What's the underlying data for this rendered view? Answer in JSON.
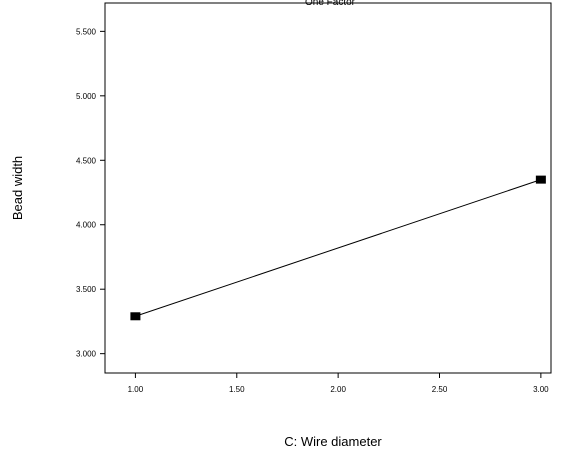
{
  "chart_data": {
    "type": "line",
    "title": "One Factor",
    "xlabel": "C: Wire diameter",
    "ylabel": "Bead width",
    "xlim": [
      0.85,
      3.05
    ],
    "ylim": [
      2.85,
      5.72
    ],
    "x_ticks": [
      1.0,
      1.5,
      2.0,
      2.5,
      3.0
    ],
    "x_tick_labels": [
      "1.00",
      "1.50",
      "2.00",
      "2.50",
      "3.00"
    ],
    "y_ticks": [
      3.0,
      3.5,
      4.0,
      4.5,
      5.0,
      5.5
    ],
    "y_tick_labels": [
      "3.000",
      "3.500",
      "4.000",
      "4.500",
      "5.000",
      "5.500"
    ],
    "grid": false,
    "series": [
      {
        "x": [
          1.0,
          3.0
        ],
        "y": [
          3.29,
          4.35
        ],
        "marker": "square"
      }
    ],
    "colors": {
      "line": "#000000",
      "marker": "#000000",
      "axis": "#000000"
    }
  }
}
